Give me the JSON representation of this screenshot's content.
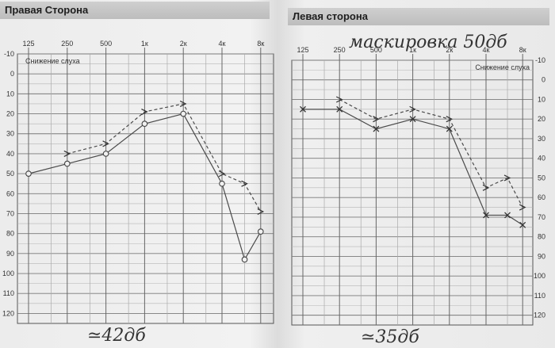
{
  "chart_data": [
    {
      "type": "line",
      "title": "Правая Сторона",
      "ylabel": "Снижение слуха",
      "x_ticks": [
        "125",
        "250",
        "500",
        "1к",
        "2к",
        "4к",
        "8к"
      ],
      "y_ticks": [
        "-10",
        "0",
        "10",
        "20",
        "30",
        "40",
        "50",
        "60",
        "70",
        "80",
        "90",
        "100",
        "110",
        "120"
      ],
      "ylim": [
        -10,
        125
      ],
      "grid": true,
      "series": [
        {
          "style": "solid",
          "marker": "circle",
          "x": [
            125,
            250,
            500,
            1000,
            2000,
            4000,
            6000,
            8000
          ],
          "values": [
            50,
            45,
            40,
            25,
            20,
            55,
            93,
            79
          ]
        },
        {
          "style": "dashed",
          "marker": "angle",
          "x": [
            250,
            500,
            1000,
            2000,
            4000,
            6000,
            8000
          ],
          "values": [
            40,
            35,
            19,
            15,
            50,
            55,
            69
          ]
        }
      ],
      "note": "≃42дб"
    },
    {
      "type": "line",
      "title": "Левая сторона",
      "ylabel": "Снижение слуха",
      "x_ticks": [
        "125",
        "250",
        "500",
        "1к",
        "2к",
        "4к",
        "8к"
      ],
      "y_ticks": [
        "-10",
        "0",
        "10",
        "20",
        "30",
        "40",
        "50",
        "60",
        "70",
        "80",
        "90",
        "100",
        "110",
        "120"
      ],
      "ylim": [
        -10,
        125
      ],
      "grid": true,
      "series": [
        {
          "style": "solid",
          "marker": "x",
          "x": [
            125,
            250,
            500,
            1000,
            2000,
            4000,
            6000,
            8000
          ],
          "values": [
            15,
            15,
            25,
            20,
            25,
            69,
            69,
            74
          ]
        },
        {
          "style": "dashed",
          "marker": "angle",
          "x": [
            250,
            500,
            1000,
            2000,
            4000,
            6000,
            8000
          ],
          "values": [
            10,
            20,
            15,
            20,
            55,
            50,
            65
          ]
        }
      ],
      "header_note": "маскировка 50дб",
      "note": "≃35дб"
    }
  ]
}
